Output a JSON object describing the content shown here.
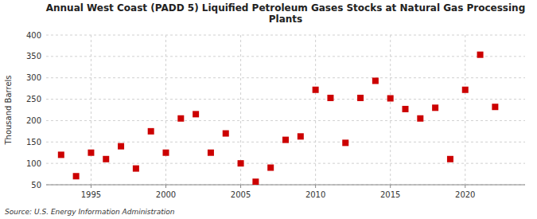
{
  "chart_data": {
    "type": "scatter",
    "title": "Annual West Coast (PADD 5) Liquified Petroleum Gases Stocks at Natural Gas Processing\nPlants",
    "ylabel": "Thousand Barrels",
    "source": "Source: U.S. Energy Information Administration",
    "x": [
      1993,
      1994,
      1995,
      1996,
      1997,
      1998,
      1999,
      2000,
      2001,
      2002,
      2003,
      2004,
      2005,
      2006,
      2007,
      2008,
      2009,
      2010,
      2011,
      2012,
      2013,
      2014,
      2015,
      2016,
      2017,
      2018,
      2019,
      2020,
      2021,
      2022
    ],
    "values": [
      120,
      70,
      125,
      110,
      140,
      88,
      175,
      125,
      205,
      215,
      125,
      170,
      100,
      57,
      90,
      155,
      163,
      272,
      253,
      148,
      253,
      293,
      252,
      227,
      205,
      230,
      110,
      272,
      354,
      232
    ],
    "color": "#cc0000",
    "marker": "square",
    "xlim": [
      1992,
      2024
    ],
    "ylim": [
      50,
      400
    ],
    "xticks": [
      1995,
      2000,
      2005,
      2010,
      2015,
      2020
    ],
    "yticks": [
      50,
      100,
      150,
      200,
      250,
      300,
      350,
      400
    ],
    "grid": true
  }
}
